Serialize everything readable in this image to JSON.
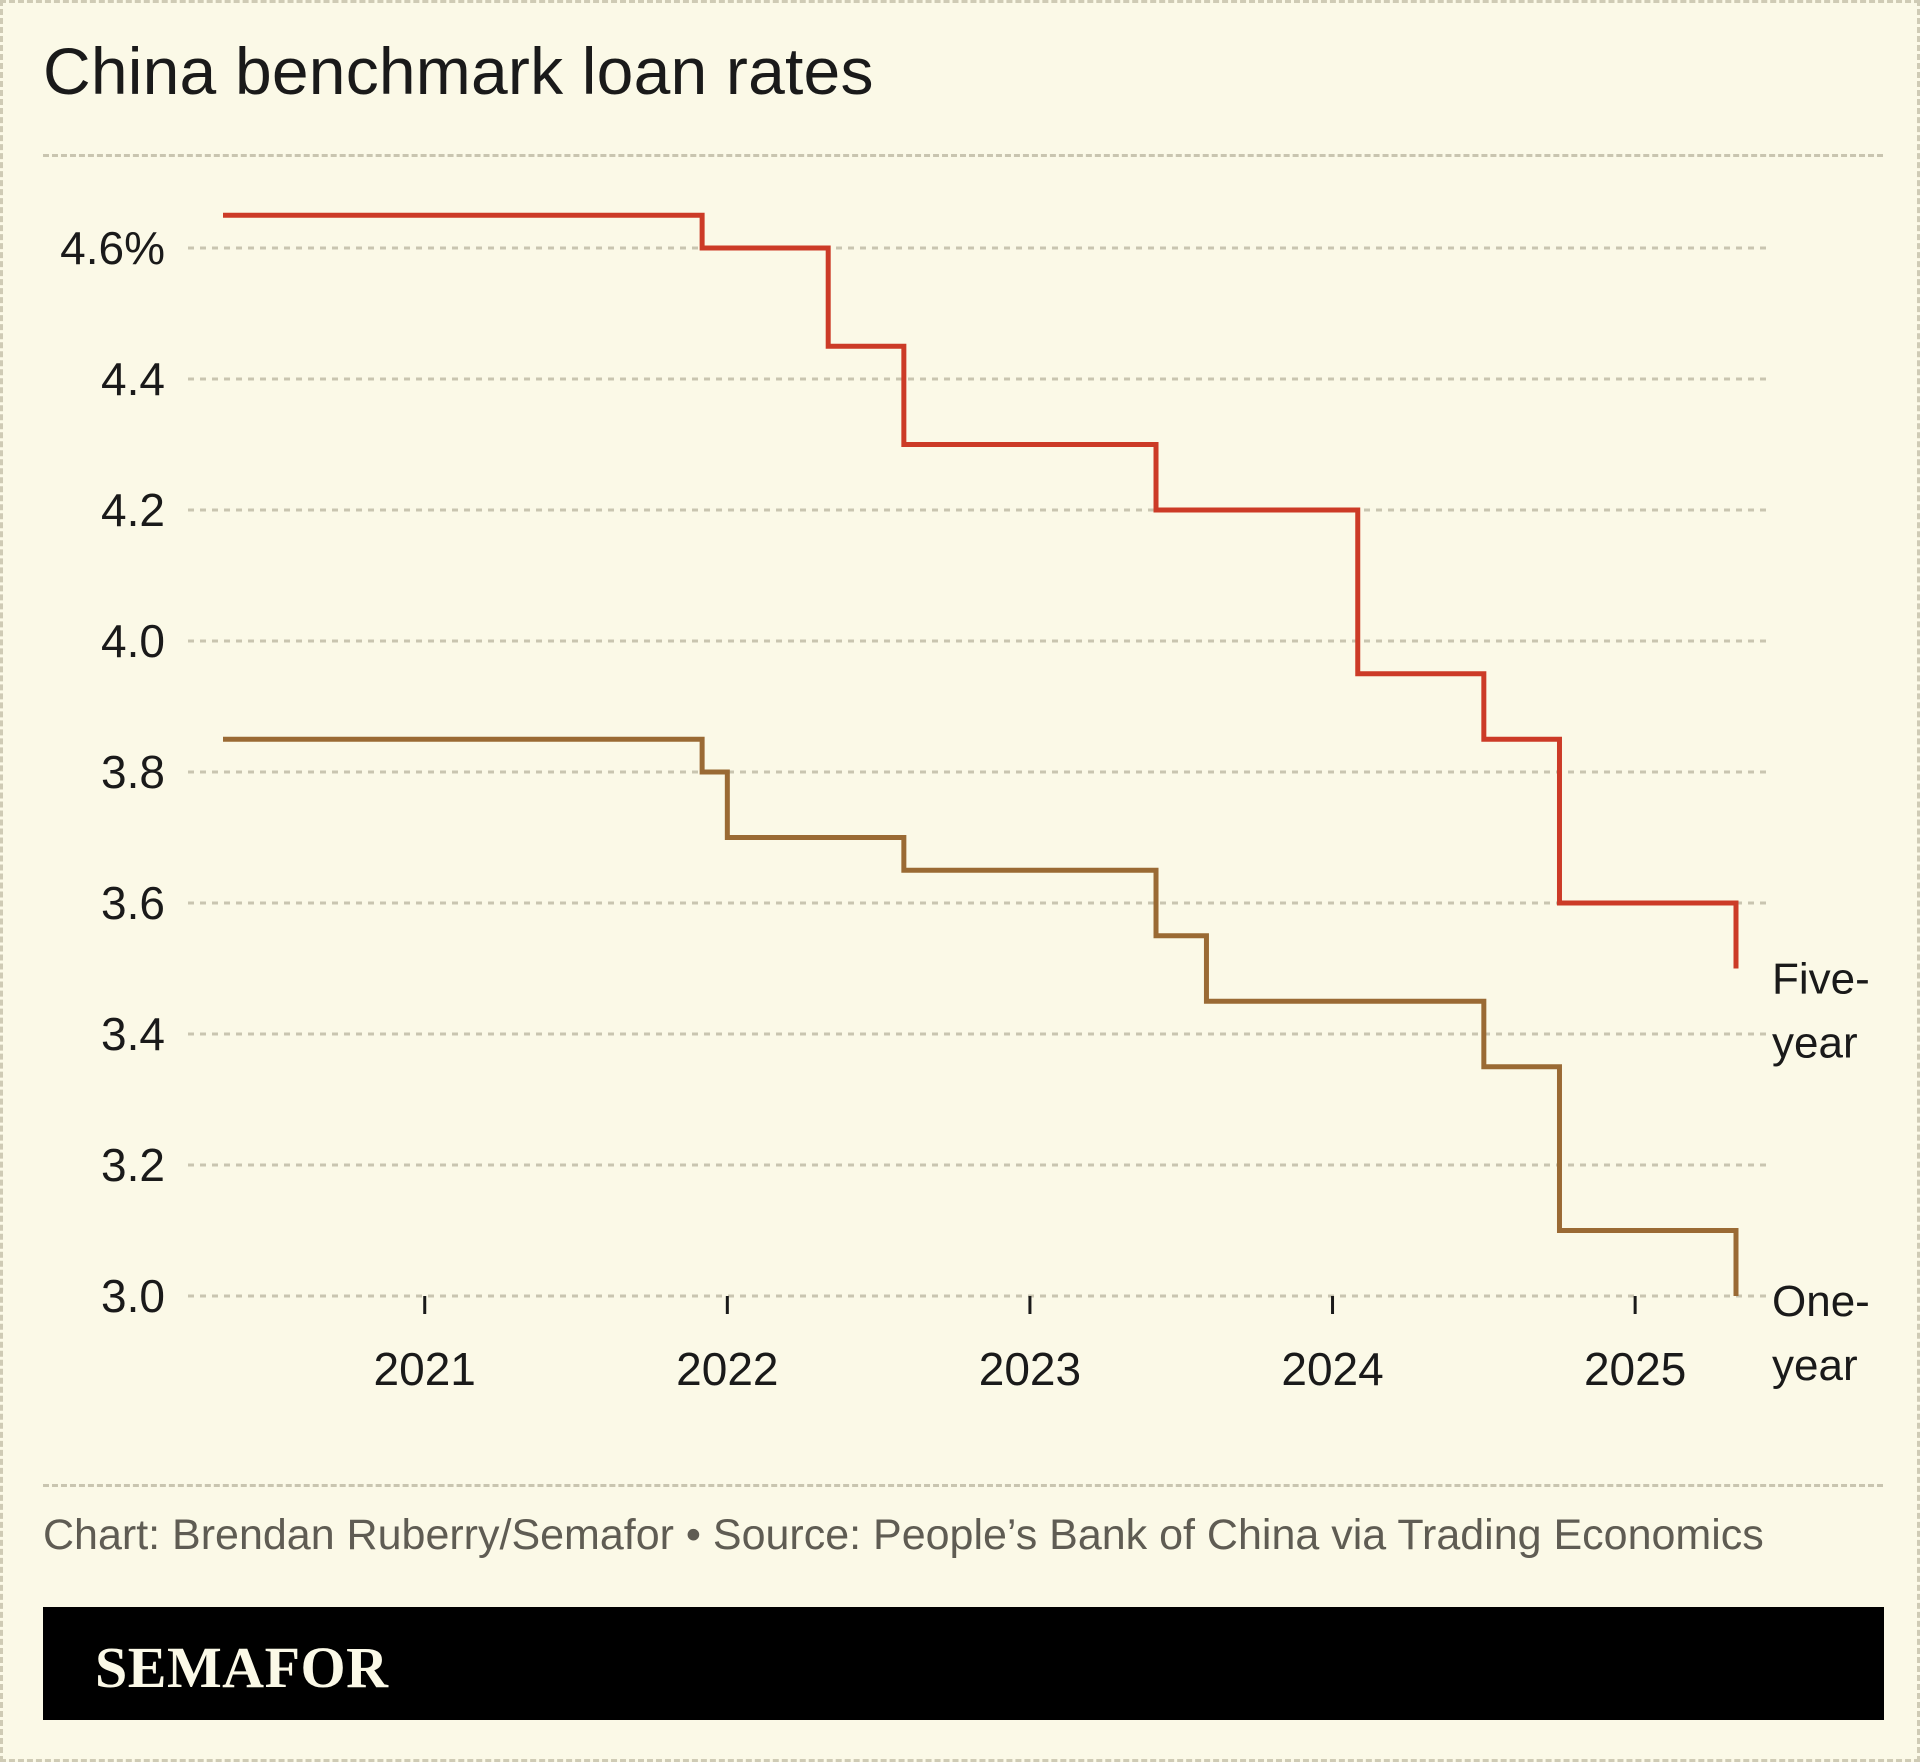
{
  "title": "China benchmark loan rates",
  "credit": "Chart: Brendan Ruberry/Semafor • Source: People’s Bank of China via Trading Economics",
  "brand": "SEMAFOR",
  "colors": {
    "background": "#fbf9e7",
    "five_year": "#cc3b27",
    "one_year": "#9a6a34",
    "grid": "#c9c5b0",
    "brand_bar": "#000000"
  },
  "chart_data": {
    "type": "line",
    "step": true,
    "title": "China benchmark loan rates",
    "xlabel": "",
    "ylabel": "",
    "x_ticks": [
      "2021",
      "2022",
      "2023",
      "2024",
      "2025"
    ],
    "y_ticks": [
      "4.6%",
      "4.4",
      "4.2",
      "4.0",
      "3.8",
      "3.6",
      "3.4",
      "3.2",
      "3.0"
    ],
    "y_tick_values": [
      4.6,
      4.4,
      4.2,
      4.0,
      3.8,
      3.6,
      3.4,
      3.2,
      3.0
    ],
    "ylim": [
      3.0,
      4.65
    ],
    "xlim": [
      "2020-05",
      "2025-05"
    ],
    "grid": "horizontal dashed",
    "series": [
      {
        "name": "Five-year",
        "label_lines": [
          "Five-",
          "year"
        ],
        "color": "#cc3b27",
        "points": [
          {
            "date": "2020-05",
            "value": 4.65
          },
          {
            "date": "2021-12",
            "value": 4.6
          },
          {
            "date": "2022-05",
            "value": 4.45
          },
          {
            "date": "2022-08",
            "value": 4.3
          },
          {
            "date": "2023-06",
            "value": 4.2
          },
          {
            "date": "2024-02",
            "value": 3.95
          },
          {
            "date": "2024-07",
            "value": 3.85
          },
          {
            "date": "2024-10",
            "value": 3.6
          },
          {
            "date": "2025-05",
            "value": 3.5
          }
        ]
      },
      {
        "name": "One-year",
        "label_lines": [
          "One-",
          "year"
        ],
        "color": "#9a6a34",
        "points": [
          {
            "date": "2020-05",
            "value": 3.85
          },
          {
            "date": "2021-12",
            "value": 3.8
          },
          {
            "date": "2022-01",
            "value": 3.7
          },
          {
            "date": "2022-08",
            "value": 3.65
          },
          {
            "date": "2023-06",
            "value": 3.55
          },
          {
            "date": "2023-08",
            "value": 3.45
          },
          {
            "date": "2024-07",
            "value": 3.35
          },
          {
            "date": "2024-10",
            "value": 3.1
          },
          {
            "date": "2025-05",
            "value": 3.0
          }
        ]
      }
    ]
  }
}
